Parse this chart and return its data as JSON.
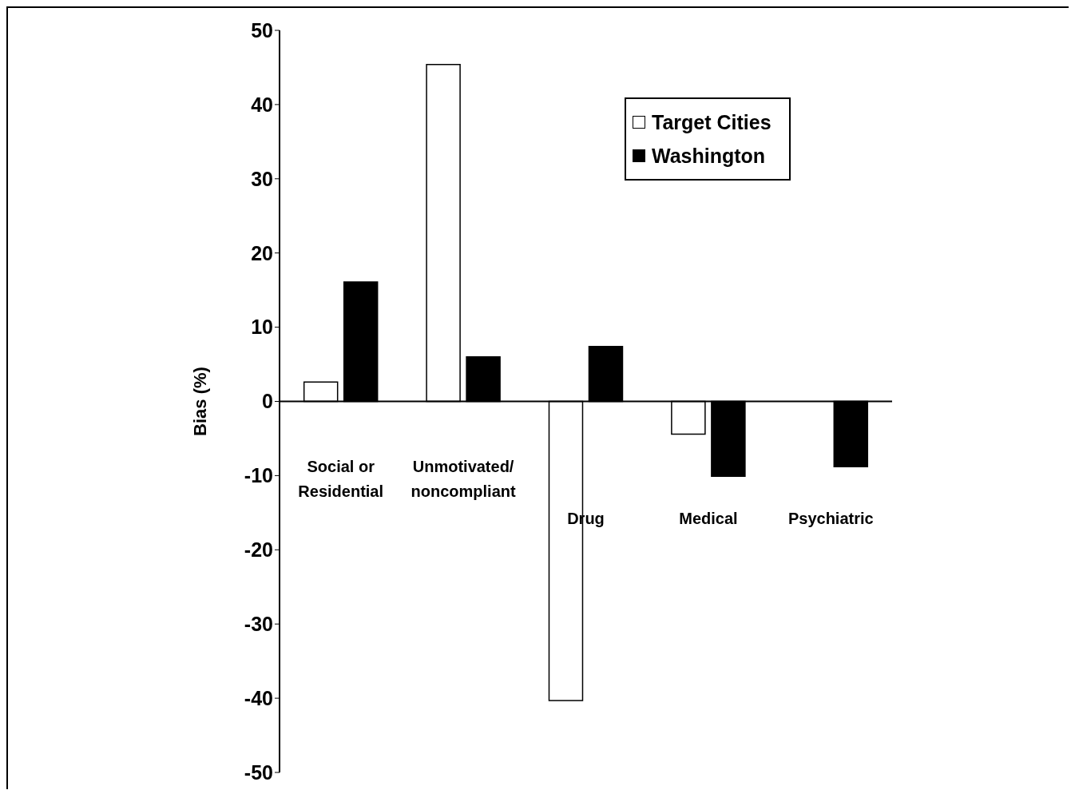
{
  "chart_data": {
    "type": "bar",
    "ylabel": "Bias (%)",
    "categories": [
      "Social or Residential",
      "Unmotivated/ noncompliant",
      "Drug",
      "Medical",
      "Psychiatric"
    ],
    "series": [
      {
        "name": "Target Cities",
        "color": "#ffffff",
        "values": [
          2.6,
          45.4,
          -40.3,
          -4.4,
          null
        ]
      },
      {
        "name": "Washington",
        "color": "#000000",
        "values": [
          16.1,
          6.0,
          7.4,
          -10.1,
          -8.8
        ]
      }
    ],
    "ylim": [
      -50,
      50
    ],
    "yticks": [
      -50,
      -40,
      -30,
      -20,
      -10,
      0,
      10,
      20,
      30,
      40,
      50
    ],
    "legend": "top right"
  }
}
